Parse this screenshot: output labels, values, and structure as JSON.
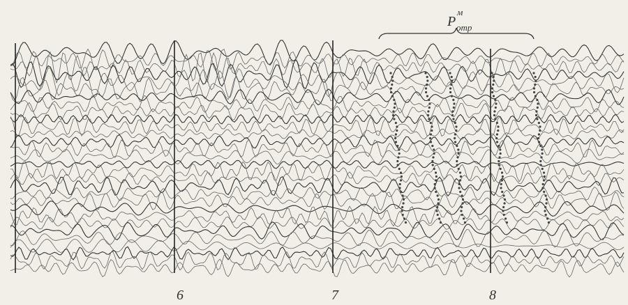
{
  "annotation": {
    "main": "P",
    "sup": "м",
    "sub": "отр"
  },
  "section_labels": [
    "6",
    "7",
    "8"
  ]
}
